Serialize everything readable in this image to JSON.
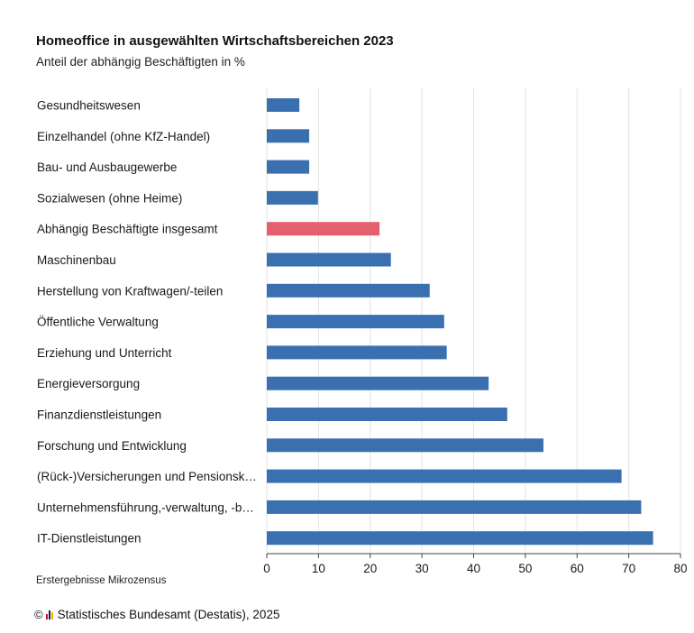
{
  "header": {
    "title": "Homeoffice in ausgewählten Wirtschaftsbereichen 2023",
    "subtitle": "Anteil der abhängig Beschäftigten in %"
  },
  "footer": {
    "note": "Erstergebnisse Mikrozensus",
    "copyright_symbol": "©",
    "logo_icon": "destatis-logo-icon",
    "source": "Statistisches Bundesamt (Destatis), 2025"
  },
  "colors": {
    "default_bar": "#3a70b0",
    "highlight_bar": "#e5606f",
    "gridline": "#e3e3e3",
    "axis": "#444444"
  },
  "chart_data": {
    "type": "bar",
    "orientation": "horizontal",
    "title": "Homeoffice in ausgewählten Wirtschaftsbereichen 2023",
    "subtitle": "Anteil der abhängig Beschäftigten in %",
    "xlabel": "",
    "ylabel": "",
    "xlim": [
      0,
      80
    ],
    "xticks": [
      0,
      10,
      20,
      30,
      40,
      50,
      60,
      70,
      80
    ],
    "grid": true,
    "legend": "none",
    "categories": [
      "Gesundheitswesen",
      "Einzelhandel (ohne KfZ-Handel)",
      "Bau- und Ausbaugewerbe",
      "Sozialwesen (ohne Heime)",
      "Abhängig Beschäftigte insgesamt",
      "Maschinenbau",
      "Herstellung von Kraftwagen/-teilen",
      "Öffentliche Verwaltung",
      "Erziehung und Unterricht",
      "Energieversorgung",
      "Finanzdienstleistungen",
      "Forschung und Entwicklung",
      "(Rück-)Versicherungen und Pensionsk…",
      "Unternehmensführung,-verwaltung, -b…",
      "IT-Dienstleistungen"
    ],
    "values": [
      6.3,
      8.2,
      8.2,
      9.9,
      21.8,
      24.0,
      31.5,
      34.3,
      34.8,
      42.9,
      46.5,
      53.5,
      68.6,
      72.4,
      74.7
    ],
    "highlight_index": 4
  }
}
